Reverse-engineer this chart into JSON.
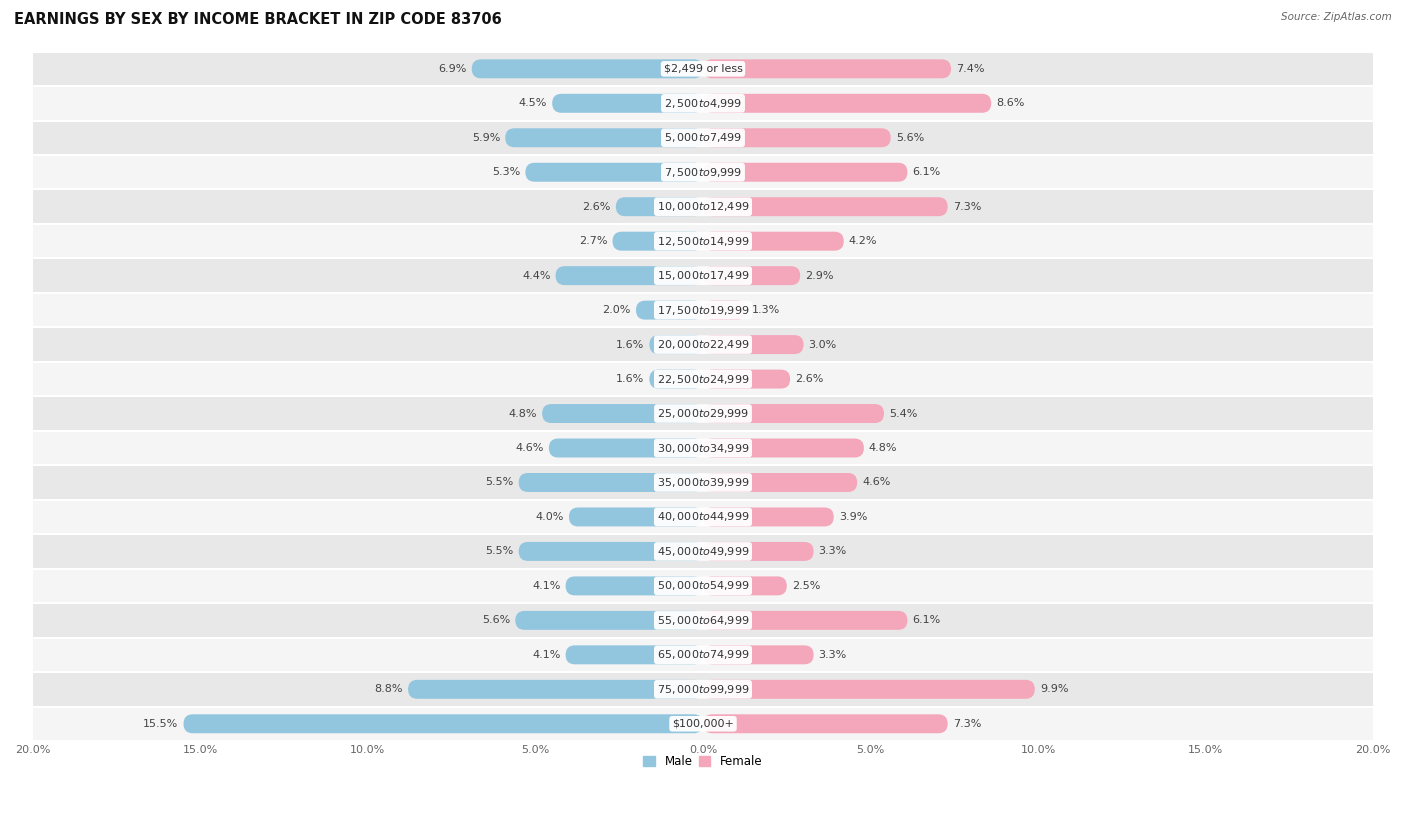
{
  "title": "EARNINGS BY SEX BY INCOME BRACKET IN ZIP CODE 83706",
  "source": "Source: ZipAtlas.com",
  "categories": [
    "$2,499 or less",
    "$2,500 to $4,999",
    "$5,000 to $7,499",
    "$7,500 to $9,999",
    "$10,000 to $12,499",
    "$12,500 to $14,999",
    "$15,000 to $17,499",
    "$17,500 to $19,999",
    "$20,000 to $22,499",
    "$22,500 to $24,999",
    "$25,000 to $29,999",
    "$30,000 to $34,999",
    "$35,000 to $39,999",
    "$40,000 to $44,999",
    "$45,000 to $49,999",
    "$50,000 to $54,999",
    "$55,000 to $64,999",
    "$65,000 to $74,999",
    "$75,000 to $99,999",
    "$100,000+"
  ],
  "male": [
    6.9,
    4.5,
    5.9,
    5.3,
    2.6,
    2.7,
    4.4,
    2.0,
    1.6,
    1.6,
    4.8,
    4.6,
    5.5,
    4.0,
    5.5,
    4.1,
    5.6,
    4.1,
    8.8,
    15.5
  ],
  "female": [
    7.4,
    8.6,
    5.6,
    6.1,
    7.3,
    4.2,
    2.9,
    1.3,
    3.0,
    2.6,
    5.4,
    4.8,
    4.6,
    3.9,
    3.3,
    2.5,
    6.1,
    3.3,
    9.9,
    7.3
  ],
  "male_color": "#92c5de",
  "female_color": "#f4a6bb",
  "bg_color_odd": "#e8e8e8",
  "bg_color_even": "#f5f5f5",
  "xlim": 20.0,
  "bar_height": 0.55,
  "title_fontsize": 10.5,
  "label_fontsize": 8,
  "category_fontsize": 8,
  "axis_tick_fontsize": 8
}
